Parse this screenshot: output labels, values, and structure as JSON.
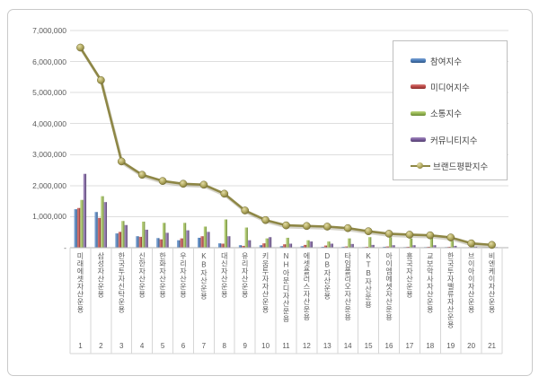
{
  "chart_data": {
    "type": "bar+line",
    "title": "",
    "categories": [
      "미래에셋자산운용",
      "삼성자산운용",
      "한국투자신탁운용",
      "신한자산운용",
      "한화자산운용",
      "우리자산운용",
      "KB자산운용",
      "대신자산운용",
      "유리자산운용",
      "키움투자자산운용",
      "NH아문디자산운용",
      "에셋플러스자산운용",
      "DB자산운용",
      "타임폴리오자산운용",
      "KTB자산운용",
      "아이엠에셋자산운용",
      "흥국자산운용",
      "교보악사자산운용",
      "한국투자밸류자산운용",
      "브이아이자산운용",
      "비엔케이자산운용"
    ],
    "rank_labels": [
      "1",
      "2",
      "3",
      "4",
      "5",
      "6",
      "7",
      "8",
      "9",
      "10",
      "11",
      "12",
      "13",
      "14",
      "15",
      "16",
      "17",
      "18",
      "19",
      "20",
      "21"
    ],
    "ylim": [
      0,
      7000000
    ],
    "ytick_interval": 1000000,
    "ytick_labels": [
      "-",
      "1,000,000",
      "2,000,000",
      "3,000,000",
      "4,000,000",
      "5,000,000",
      "6,000,000",
      "7,000,000"
    ],
    "grid": true,
    "legend_position": "top-right",
    "series": [
      {
        "name": "참여지수",
        "type": "bar",
        "color": "#4f81bd",
        "light": "#7ba2d4",
        "dark": "#2d5586",
        "values": [
          1240000,
          1150000,
          460000,
          370000,
          310000,
          240000,
          320000,
          140000,
          80000,
          80000,
          50000,
          50000,
          30000,
          30000,
          20000,
          30000,
          20000,
          20000,
          20000,
          10000,
          10000
        ]
      },
      {
        "name": "미디어지수",
        "type": "bar",
        "color": "#be4b48",
        "light": "#d97f7c",
        "dark": "#8a2f2d",
        "values": [
          1280000,
          960000,
          510000,
          350000,
          270000,
          300000,
          370000,
          130000,
          60000,
          140000,
          110000,
          90000,
          70000,
          40000,
          30000,
          40000,
          30000,
          30000,
          30000,
          20000,
          10000
        ]
      },
      {
        "name": "소통지수",
        "type": "bar",
        "color": "#98b954",
        "light": "#c0d683",
        "dark": "#6a8836",
        "values": [
          1540000,
          1660000,
          860000,
          840000,
          800000,
          800000,
          680000,
          910000,
          650000,
          300000,
          320000,
          240000,
          200000,
          300000,
          340000,
          340000,
          300000,
          370000,
          220000,
          80000,
          40000
        ]
      },
      {
        "name": "커뮤니티지수",
        "type": "bar",
        "color": "#7d60a0",
        "light": "#a68fc0",
        "dark": "#523e6e",
        "values": [
          2380000,
          1470000,
          730000,
          580000,
          480000,
          560000,
          510000,
          370000,
          240000,
          340000,
          130000,
          200000,
          130000,
          120000,
          90000,
          80000,
          80000,
          80000,
          60000,
          30000,
          20000
        ]
      },
      {
        "name": "브랜드평판지수",
        "type": "line",
        "color": "#8e8746",
        "light": "#e3dca6",
        "dark": "#756e33",
        "values": [
          6450000,
          5400000,
          2780000,
          2350000,
          2150000,
          2060000,
          2030000,
          1740000,
          1200000,
          890000,
          720000,
          700000,
          680000,
          630000,
          530000,
          450000,
          420000,
          400000,
          330000,
          140000,
          90000
        ]
      }
    ]
  }
}
